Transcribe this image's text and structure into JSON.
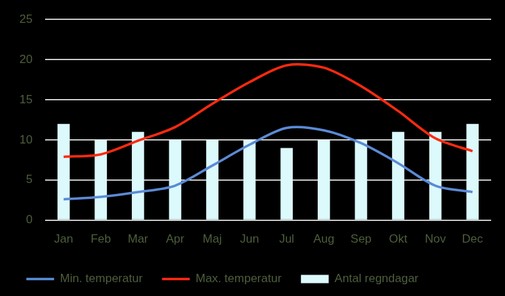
{
  "chart_data": {
    "type": "bar",
    "categories": [
      "Jan",
      "Feb",
      "Mar",
      "Apr",
      "Maj",
      "Jun",
      "Jul",
      "Aug",
      "Sep",
      "Okt",
      "Nov",
      "Dec"
    ],
    "series": [
      {
        "name": "Antal regndagar",
        "type": "bar",
        "color": "#dcf9fc",
        "values": [
          12,
          10,
          11,
          10,
          10,
          10,
          9,
          10,
          10,
          11,
          11,
          12
        ]
      },
      {
        "name": "Min. temperatur",
        "type": "line",
        "color": "#5b8ad6",
        "marker": "none",
        "values": [
          2.6,
          2.9,
          3.5,
          4.3,
          6.8,
          9.4,
          11.5,
          11.2,
          9.6,
          7.1,
          4.3,
          3.5
        ]
      },
      {
        "name": "Max. temperatur",
        "type": "line",
        "color": "#ff2a10",
        "marker": "none",
        "values": [
          7.9,
          8.2,
          9.9,
          11.6,
          14.5,
          17.2,
          19.3,
          19.0,
          16.7,
          13.6,
          10.2,
          8.6
        ]
      }
    ],
    "ylim": [
      0,
      25
    ],
    "yticks": [
      0,
      5,
      10,
      15,
      20,
      25
    ],
    "grid": true,
    "legend": "bottom"
  }
}
